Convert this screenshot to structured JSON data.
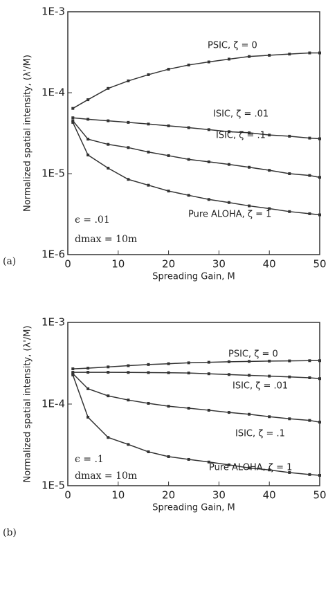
{
  "chart_data": [
    {
      "type": "line",
      "panel": "(a)",
      "xlabel": "Spreading Gain, M",
      "ylabel": "Normalized spatial intensity, (λ'/M)",
      "log_y": true,
      "xlim": [
        0,
        50
      ],
      "xticks": [
        0,
        10,
        20,
        30,
        40,
        50
      ],
      "ylim": [
        1e-06,
        0.001
      ],
      "yticks": [
        {
          "value": 0.001,
          "label": "1E-3"
        },
        {
          "value": 0.0001,
          "label": "1E-4"
        },
        {
          "value": 1e-05,
          "label": "1E-5"
        },
        {
          "value": 1e-06,
          "label": "1E-6"
        }
      ],
      "annotations": [
        "ϵ = .01",
        "dmax = 10m"
      ],
      "x": [
        1,
        4,
        8,
        12,
        16,
        20,
        24,
        28,
        32,
        36,
        40,
        44,
        48,
        50
      ],
      "series": [
        {
          "name": "PSIC, ζ = 0",
          "color": "#333333",
          "values": [
            6.4e-05,
            8.2e-05,
            0.000113,
            0.00014,
            0.000167,
            0.000195,
            0.00022,
            0.00024,
            0.00026,
            0.00028,
            0.00029,
            0.0003,
            0.00031,
            0.00031
          ]
        },
        {
          "name": "ISIC, ζ = .01",
          "color": "#333333",
          "values": [
            4.9e-05,
            4.7e-05,
            4.5e-05,
            4.3e-05,
            4.1e-05,
            3.9e-05,
            3.7e-05,
            3.5e-05,
            3.3e-05,
            3.2e-05,
            3e-05,
            2.9e-05,
            2.75e-05,
            2.7e-05
          ]
        },
        {
          "name": "ISIC, ζ = .1",
          "color": "#333333",
          "values": [
            4.5e-05,
            2.67e-05,
            2.3e-05,
            2.1e-05,
            1.85e-05,
            1.67e-05,
            1.5e-05,
            1.4e-05,
            1.3e-05,
            1.2e-05,
            1.1e-05,
            1e-05,
            9.5e-06,
            9e-06
          ]
        },
        {
          "name": "Pure ALOHA, ζ = 1",
          "color": "#333333",
          "values": [
            4.3e-05,
            1.7e-05,
            1.17e-05,
            8.5e-06,
            7.2e-06,
            6.1e-06,
            5.4e-06,
            4.8e-06,
            4.4e-06,
            4e-06,
            3.7e-06,
            3.4e-06,
            3.2e-06,
            3.1e-06
          ]
        }
      ]
    },
    {
      "type": "line",
      "panel": "(b)",
      "xlabel": "Spreading Gain, M",
      "ylabel": "Normalized spatial intensity, (λ'/M)",
      "log_y": true,
      "xlim": [
        0,
        50
      ],
      "xticks": [
        0,
        10,
        20,
        30,
        40,
        50
      ],
      "ylim": [
        1e-05,
        0.001
      ],
      "yticks": [
        {
          "value": 0.001,
          "label": "1E-3"
        },
        {
          "value": 0.0001,
          "label": "1E-4"
        },
        {
          "value": 1e-05,
          "label": "1E-5"
        }
      ],
      "annotations": [
        "ϵ = .1",
        "dmax = 10m"
      ],
      "x": [
        1,
        4,
        8,
        12,
        16,
        20,
        24,
        28,
        32,
        36,
        40,
        44,
        48,
        50
      ],
      "series": [
        {
          "name": "PSIC, ζ = 0",
          "color": "#333333",
          "values": [
            0.00027,
            0.000275,
            0.000285,
            0.000295,
            0.000305,
            0.000312,
            0.00032,
            0.000325,
            0.00033,
            0.000333,
            0.000336,
            0.000338,
            0.00034,
            0.00034
          ]
        },
        {
          "name": "ISIC, ζ = .01",
          "color": "#333333",
          "values": [
            0.000245,
            0.000245,
            0.000245,
            0.000244,
            0.000243,
            0.000242,
            0.00024,
            0.000235,
            0.00023,
            0.000225,
            0.00022,
            0.000215,
            0.00021,
            0.000205
          ]
        },
        {
          "name": "ISIC, ζ = .1",
          "color": "#333333",
          "values": [
            0.000236,
            0.000154,
            0.000126,
            0.000112,
            0.000102,
            9.4e-05,
            8.9e-05,
            8.4e-05,
            7.9e-05,
            7.5e-05,
            7e-05,
            6.6e-05,
            6.3e-05,
            6e-05
          ]
        },
        {
          "name": "Pure ALOHA, ζ = 1",
          "color": "#333333",
          "values": [
            0.000227,
            6.9e-05,
            3.9e-05,
            3.2e-05,
            2.6e-05,
            2.27e-05,
            2.1e-05,
            1.95e-05,
            1.8e-05,
            1.65e-05,
            1.56e-05,
            1.45e-05,
            1.37e-05,
            1.34e-05
          ]
        }
      ]
    }
  ]
}
